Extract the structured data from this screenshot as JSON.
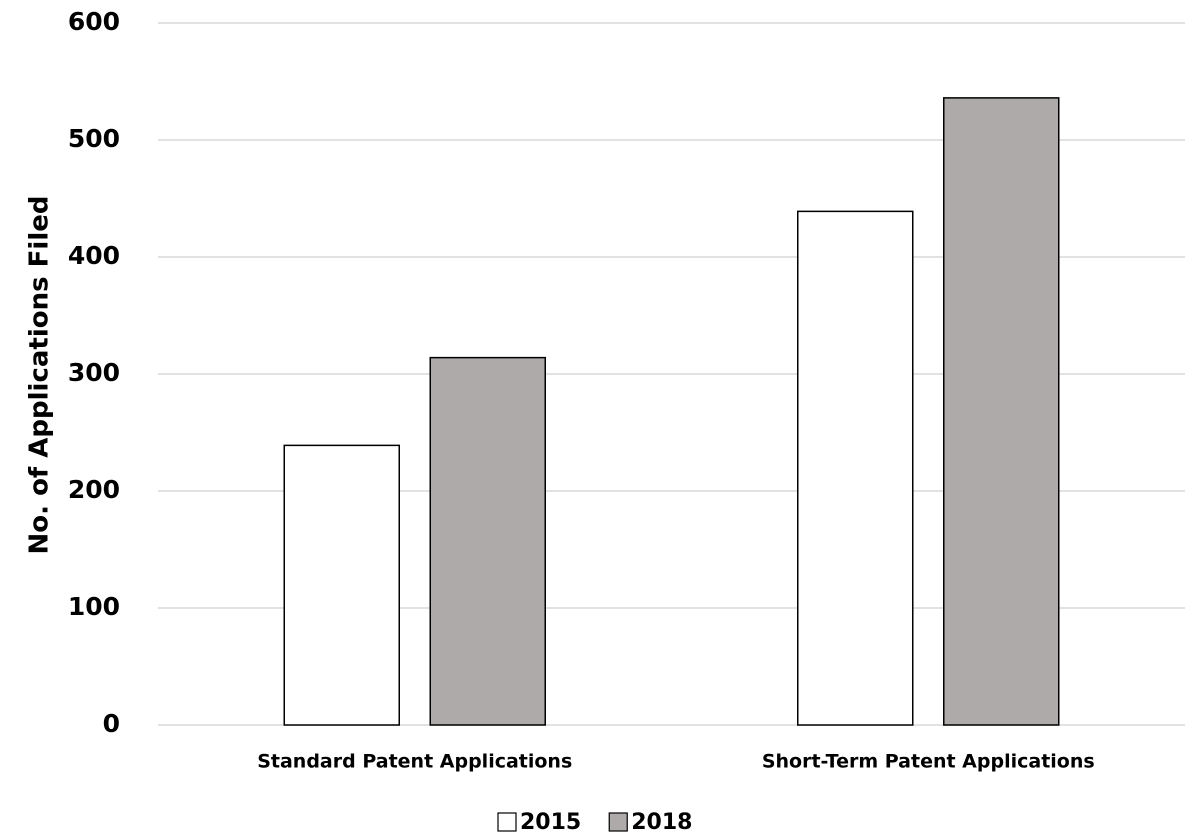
{
  "chart_data": {
    "type": "bar",
    "y_label": "No. of Applications Filed",
    "categories": [
      "Standard Patent Applications",
      "Short-Term Patent Applications"
    ],
    "series": [
      {
        "name": "2015",
        "color": "#ffffff",
        "values": [
          239,
          439
        ]
      },
      {
        "name": "2018",
        "color": "#aeaaaa",
        "values": [
          314,
          536
        ]
      }
    ],
    "ylim": [
      0,
      600
    ],
    "yticks": [
      0,
      100,
      200,
      300,
      400,
      500,
      600
    ],
    "grid": true,
    "legend": "bottom"
  }
}
